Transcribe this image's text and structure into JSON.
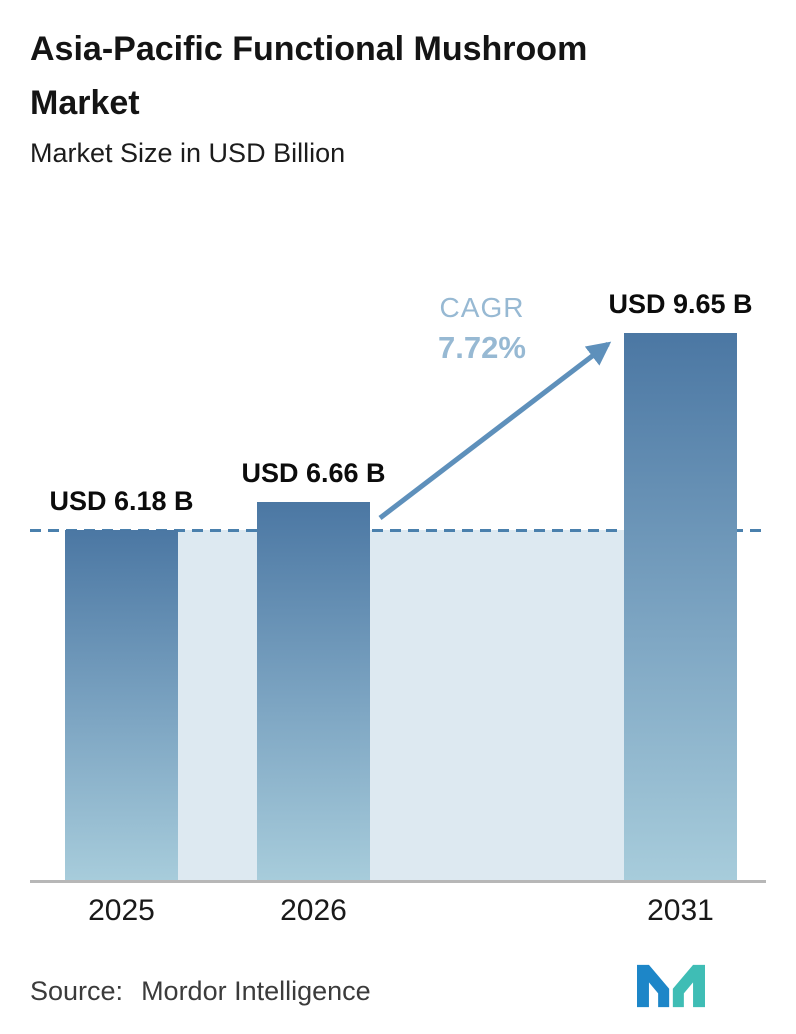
{
  "header": {
    "title": "Asia-Pacific Functional Mushroom Market",
    "subtitle": "Market Size in USD Billion"
  },
  "chart_data": {
    "type": "bar",
    "title": "Asia-Pacific Functional Mushroom Market",
    "subtitle": "Market Size in USD Billion",
    "categories": [
      "2025",
      "2026",
      "2031"
    ],
    "values": [
      6.18,
      6.66,
      9.65
    ],
    "bar_labels": [
      "USD 6.18 B",
      "USD 6.66 B",
      "USD 9.65 B"
    ],
    "unit": "USD Billion",
    "ylim": [
      0,
      10
    ],
    "grid": false,
    "legend": false,
    "annotations": {
      "cagr_label": "CAGR",
      "cagr_value": "7.72%",
      "dashed_reference_value": 6.18
    },
    "colors": {
      "bar_gradient_top": "#4b77a3",
      "bar_gradient_bottom": "#a7ccdb",
      "band_fill": "#dde9f1",
      "dashed_line": "#4a80ad",
      "arrow": "#5e90bb",
      "cagr_text": "#97b9d3"
    }
  },
  "footer": {
    "source_label": "Source:",
    "source_value": "Mordor Intelligence",
    "logo": "mordor-intelligence-logo"
  }
}
